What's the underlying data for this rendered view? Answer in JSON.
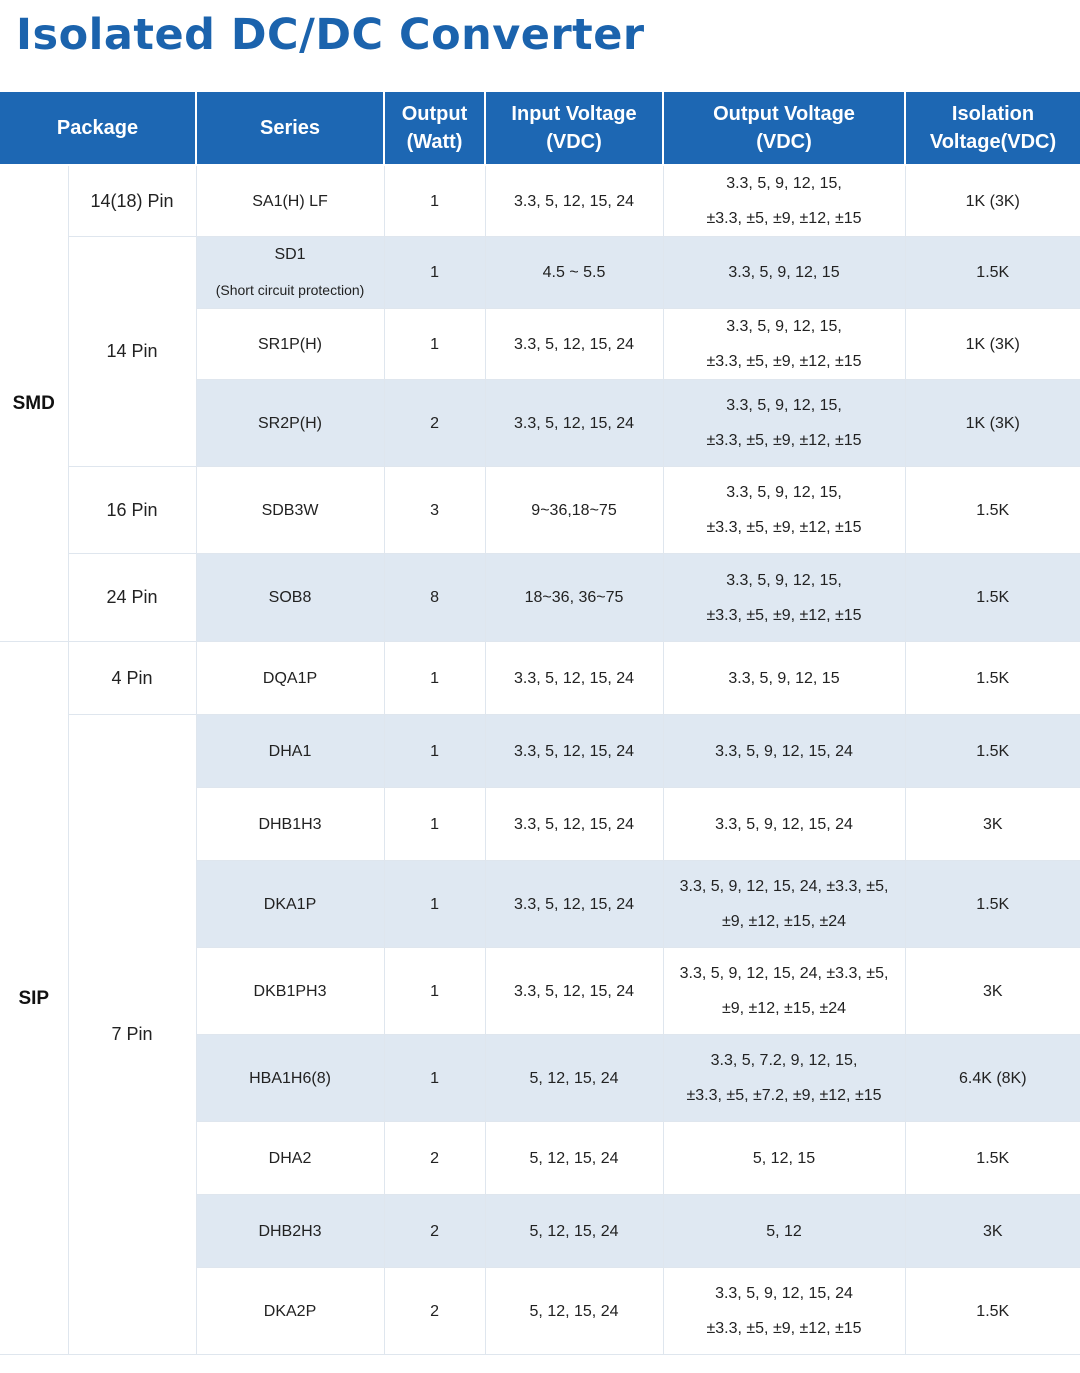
{
  "title": "Isolated DC/DC Converter",
  "table": {
    "headers": {
      "package": "Package",
      "series": "Series",
      "output_l1": "Output",
      "output_l2": "(Watt)",
      "input_l1": "Input Voltage",
      "input_l2": "(VDC)",
      "outv_l1": "Output Voltage",
      "outv_l2": "(VDC)",
      "iso_l1": "Isolation",
      "iso_l2": "Voltage(VDC)"
    },
    "groups": {
      "smd": "SMD",
      "sip": "SIP"
    },
    "pins": {
      "p1418": "14(18) Pin",
      "p14": "14 Pin",
      "p16": "16 Pin",
      "p24": "24 Pin",
      "p4": "4 Pin",
      "p7": "7 Pin"
    },
    "rows": [
      {
        "series": "SA1(H) LF",
        "watt": "1",
        "input": "3.3, 5, 12, 15, 24",
        "out1": "3.3, 5, 9, 12, 15,",
        "out2": "±3.3, ±5, ±9, ±12, ±15",
        "iso": "1K (3K)"
      },
      {
        "series": "SD1",
        "note": "(Short circuit protection)",
        "watt": "1",
        "input": "4.5 ~ 5.5",
        "out1": "3.3, 5, 9, 12, 15",
        "iso": "1.5K"
      },
      {
        "series": "SR1P(H)",
        "watt": "1",
        "input": "3.3, 5, 12, 15, 24",
        "out1": "3.3, 5, 9, 12, 15,",
        "out2": "±3.3, ±5, ±9, ±12, ±15",
        "iso": "1K (3K)"
      },
      {
        "series": "SR2P(H)",
        "watt": "2",
        "input": "3.3, 5, 12, 15, 24",
        "out1": "3.3, 5, 9, 12, 15,",
        "out2": "±3.3, ±5, ±9, ±12, ±15",
        "iso": "1K (3K)"
      },
      {
        "series": "SDB3W",
        "watt": "3",
        "input": "9~36,18~75",
        "out1": "3.3, 5, 9, 12, 15,",
        "out2": "±3.3, ±5, ±9, ±12, ±15",
        "iso": "1.5K"
      },
      {
        "series": "SOB8",
        "watt": "8",
        "input": "18~36, 36~75",
        "out1": "3.3, 5, 9, 12, 15,",
        "out2": "±3.3, ±5, ±9, ±12, ±15",
        "iso": "1.5K"
      },
      {
        "series": "DQA1P",
        "watt": "1",
        "input": "3.3, 5, 12, 15, 24",
        "out1": "3.3, 5, 9, 12, 15",
        "iso": "1.5K"
      },
      {
        "series": "DHA1",
        "watt": "1",
        "input": "3.3, 5, 12, 15, 24",
        "out1": "3.3, 5, 9, 12, 15, 24",
        "iso": "1.5K"
      },
      {
        "series": "DHB1H3",
        "watt": "1",
        "input": "3.3, 5, 12, 15, 24",
        "out1": "3.3, 5, 9, 12, 15, 24",
        "iso": "3K"
      },
      {
        "series": "DKA1P",
        "watt": "1",
        "input": "3.3, 5, 12, 15, 24",
        "out1": "3.3, 5, 9, 12, 15, 24, ±3.3, ±5,",
        "out2": "±9, ±12, ±15, ±24",
        "iso": "1.5K"
      },
      {
        "series": "DKB1PH3",
        "watt": "1",
        "input": "3.3, 5, 12, 15, 24",
        "out1": "3.3, 5, 9, 12, 15, 24, ±3.3, ±5,",
        "out2": "±9, ±12, ±15, ±24",
        "iso": "3K"
      },
      {
        "series": "HBA1H6(8)",
        "watt": "1",
        "input": "5, 12, 15, 24",
        "out1": "3.3, 5, 7.2, 9, 12, 15,",
        "out2": "±3.3, ±5, ±7.2, ±9, ±12, ±15",
        "iso": "6.4K (8K)"
      },
      {
        "series": "DHA2",
        "watt": "2",
        "input": "5, 12, 15, 24",
        "out1": "5, 12, 15",
        "iso": "1.5K"
      },
      {
        "series": "DHB2H3",
        "watt": "2",
        "input": "5, 12, 15, 24",
        "out1": "5, 12",
        "iso": "3K"
      },
      {
        "series": "DKA2P",
        "watt": "2",
        "input": "5, 12, 15, 24",
        "out1": "3.3, 5, 9, 12, 15, 24",
        "out2": "±3.3, ±5, ±9, ±12, ±15",
        "iso": "1.5K"
      }
    ]
  },
  "colors": {
    "title": "#1b63ad",
    "header_bg": "#1d67b3",
    "row_alt_bg": "#dfe8f2"
  }
}
